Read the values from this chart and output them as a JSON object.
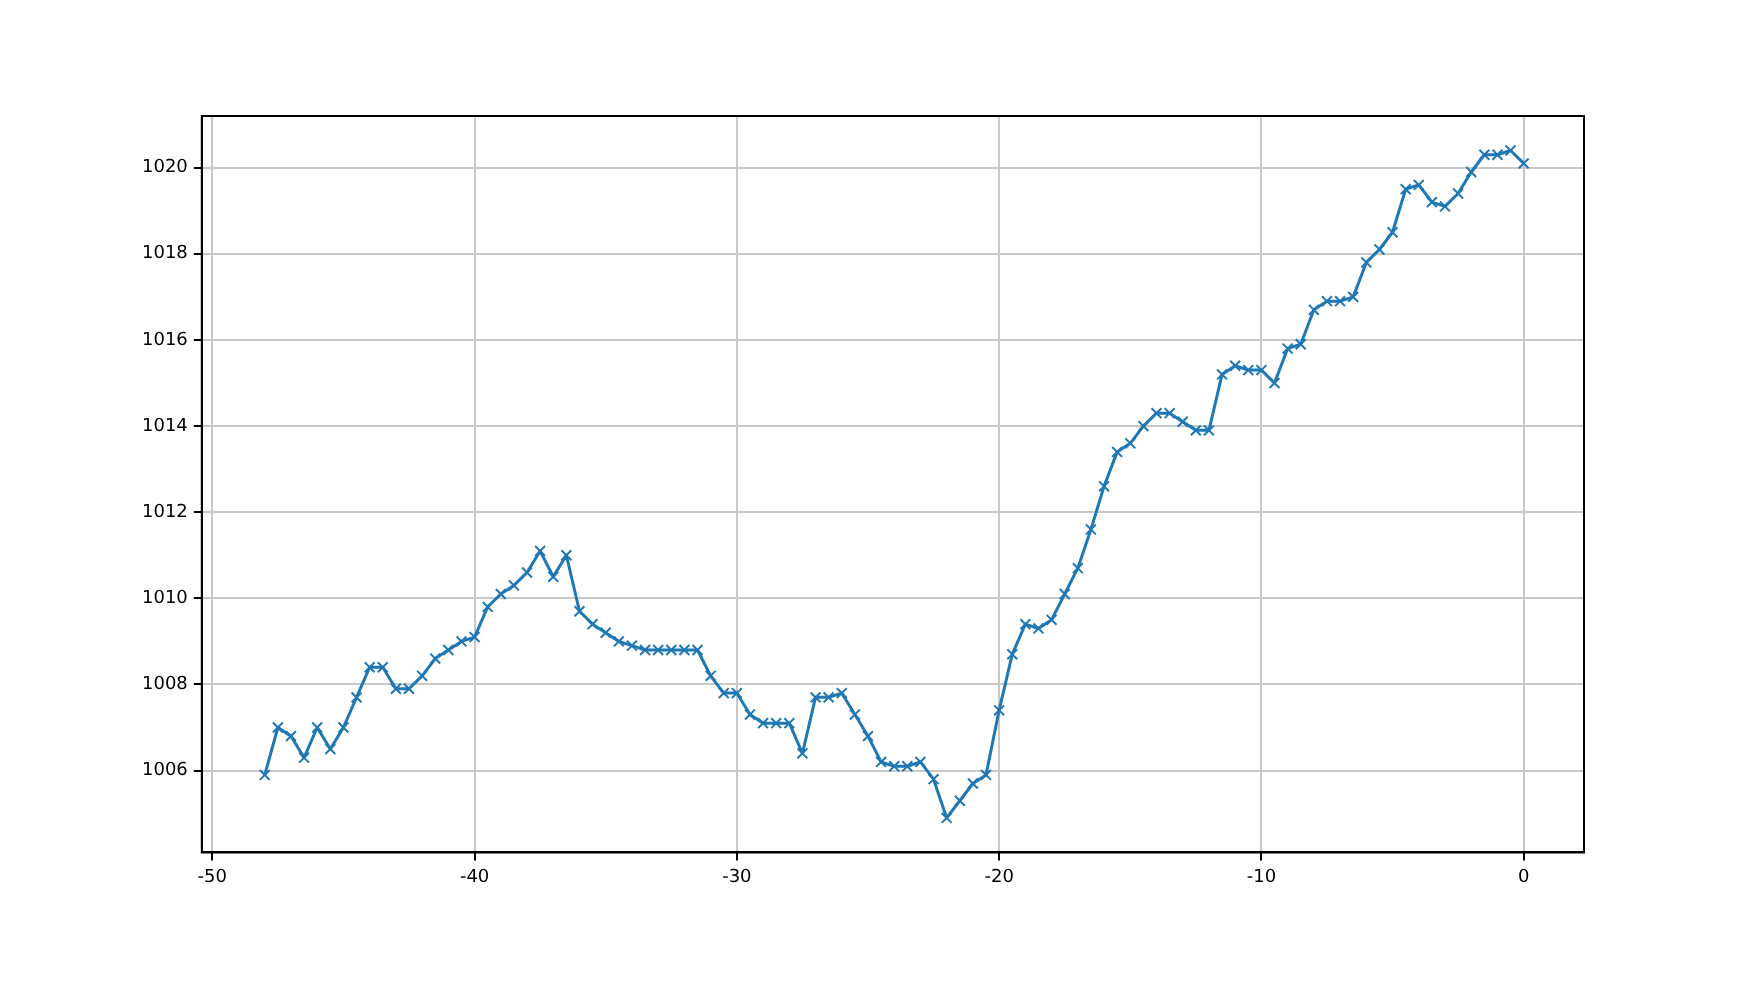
{
  "chart_data": {
    "type": "line",
    "x": [
      -48,
      -47.5,
      -47,
      -46.5,
      -46,
      -45.5,
      -45,
      -44.5,
      -44,
      -43.5,
      -43,
      -42.5,
      -42,
      -41.5,
      -41,
      -40.5,
      -40,
      -39.5,
      -39,
      -38.5,
      -38,
      -37.5,
      -37,
      -36.5,
      -36,
      -35.5,
      -35,
      -34.5,
      -34,
      -33.5,
      -33,
      -32.5,
      -32,
      -31.5,
      -31,
      -30.5,
      -30,
      -29.5,
      -29,
      -28.5,
      -28,
      -27.5,
      -27,
      -26.5,
      -26,
      -25.5,
      -25,
      -24.5,
      -24,
      -23.5,
      -23,
      -22.5,
      -22,
      -21.5,
      -21,
      -20.5,
      -20,
      -19.5,
      -19,
      -18.5,
      -18,
      -17.5,
      -17,
      -16.5,
      -16,
      -15.5,
      -15,
      -14.5,
      -14,
      -13.5,
      -13,
      -12.5,
      -12,
      -11.5,
      -11,
      -10.5,
      -10,
      -9.5,
      -9,
      -8.5,
      -8,
      -7.5,
      -7,
      -6.5,
      -6,
      -5.5,
      -5,
      -4.5,
      -4,
      -3.5,
      -3,
      -2.5,
      -2,
      -1.5,
      -1,
      -0.5,
      0
    ],
    "series": [
      {
        "color": "#1f77b4",
        "values": [
          1005.9,
          1007.0,
          1006.8,
          1006.3,
          1007.0,
          1006.5,
          1007.0,
          1007.7,
          1008.4,
          1008.4,
          1007.9,
          1007.9,
          1008.2,
          1008.6,
          1008.8,
          1009.0,
          1009.1,
          1009.8,
          1010.1,
          1010.3,
          1010.6,
          1011.1,
          1010.5,
          1011.0,
          1009.7,
          1009.4,
          1009.2,
          1009.0,
          1008.9,
          1008.8,
          1008.8,
          1008.8,
          1008.8,
          1008.8,
          1008.2,
          1007.8,
          1007.8,
          1007.3,
          1007.1,
          1007.1,
          1007.1,
          1006.4,
          1007.7,
          1007.7,
          1007.8,
          1007.3,
          1006.8,
          1006.2,
          1006.1,
          1006.1,
          1006.2,
          1005.8,
          1004.9,
          1005.3,
          1005.7,
          1005.9,
          1007.4,
          1008.7,
          1009.4,
          1009.3,
          1009.5,
          1010.1,
          1010.7,
          1011.6,
          1012.6,
          1013.4,
          1013.6,
          1014.0,
          1014.3,
          1014.3,
          1014.1,
          1013.9,
          1013.9,
          1015.2,
          1015.4,
          1015.3,
          1015.3,
          1015.0,
          1015.8,
          1015.9,
          1016.7,
          1016.9,
          1016.9,
          1017.0,
          1017.8,
          1018.1,
          1018.5,
          1019.5,
          1019.6,
          1019.2,
          1019.1,
          1019.4,
          1019.9,
          1020.3,
          1020.3,
          1020.4,
          1020.1
        ]
      }
    ],
    "xlim": [
      -50.4,
      2.3
    ],
    "xticks": [
      -50,
      -40,
      -30,
      -20,
      -10,
      0
    ],
    "ylim": [
      1004.1,
      1021.2
    ],
    "yticks": [
      1006,
      1008,
      1010,
      1012,
      1014,
      1016,
      1018,
      1020
    ],
    "grid": true,
    "marker": "cross",
    "line_style": "solid"
  }
}
